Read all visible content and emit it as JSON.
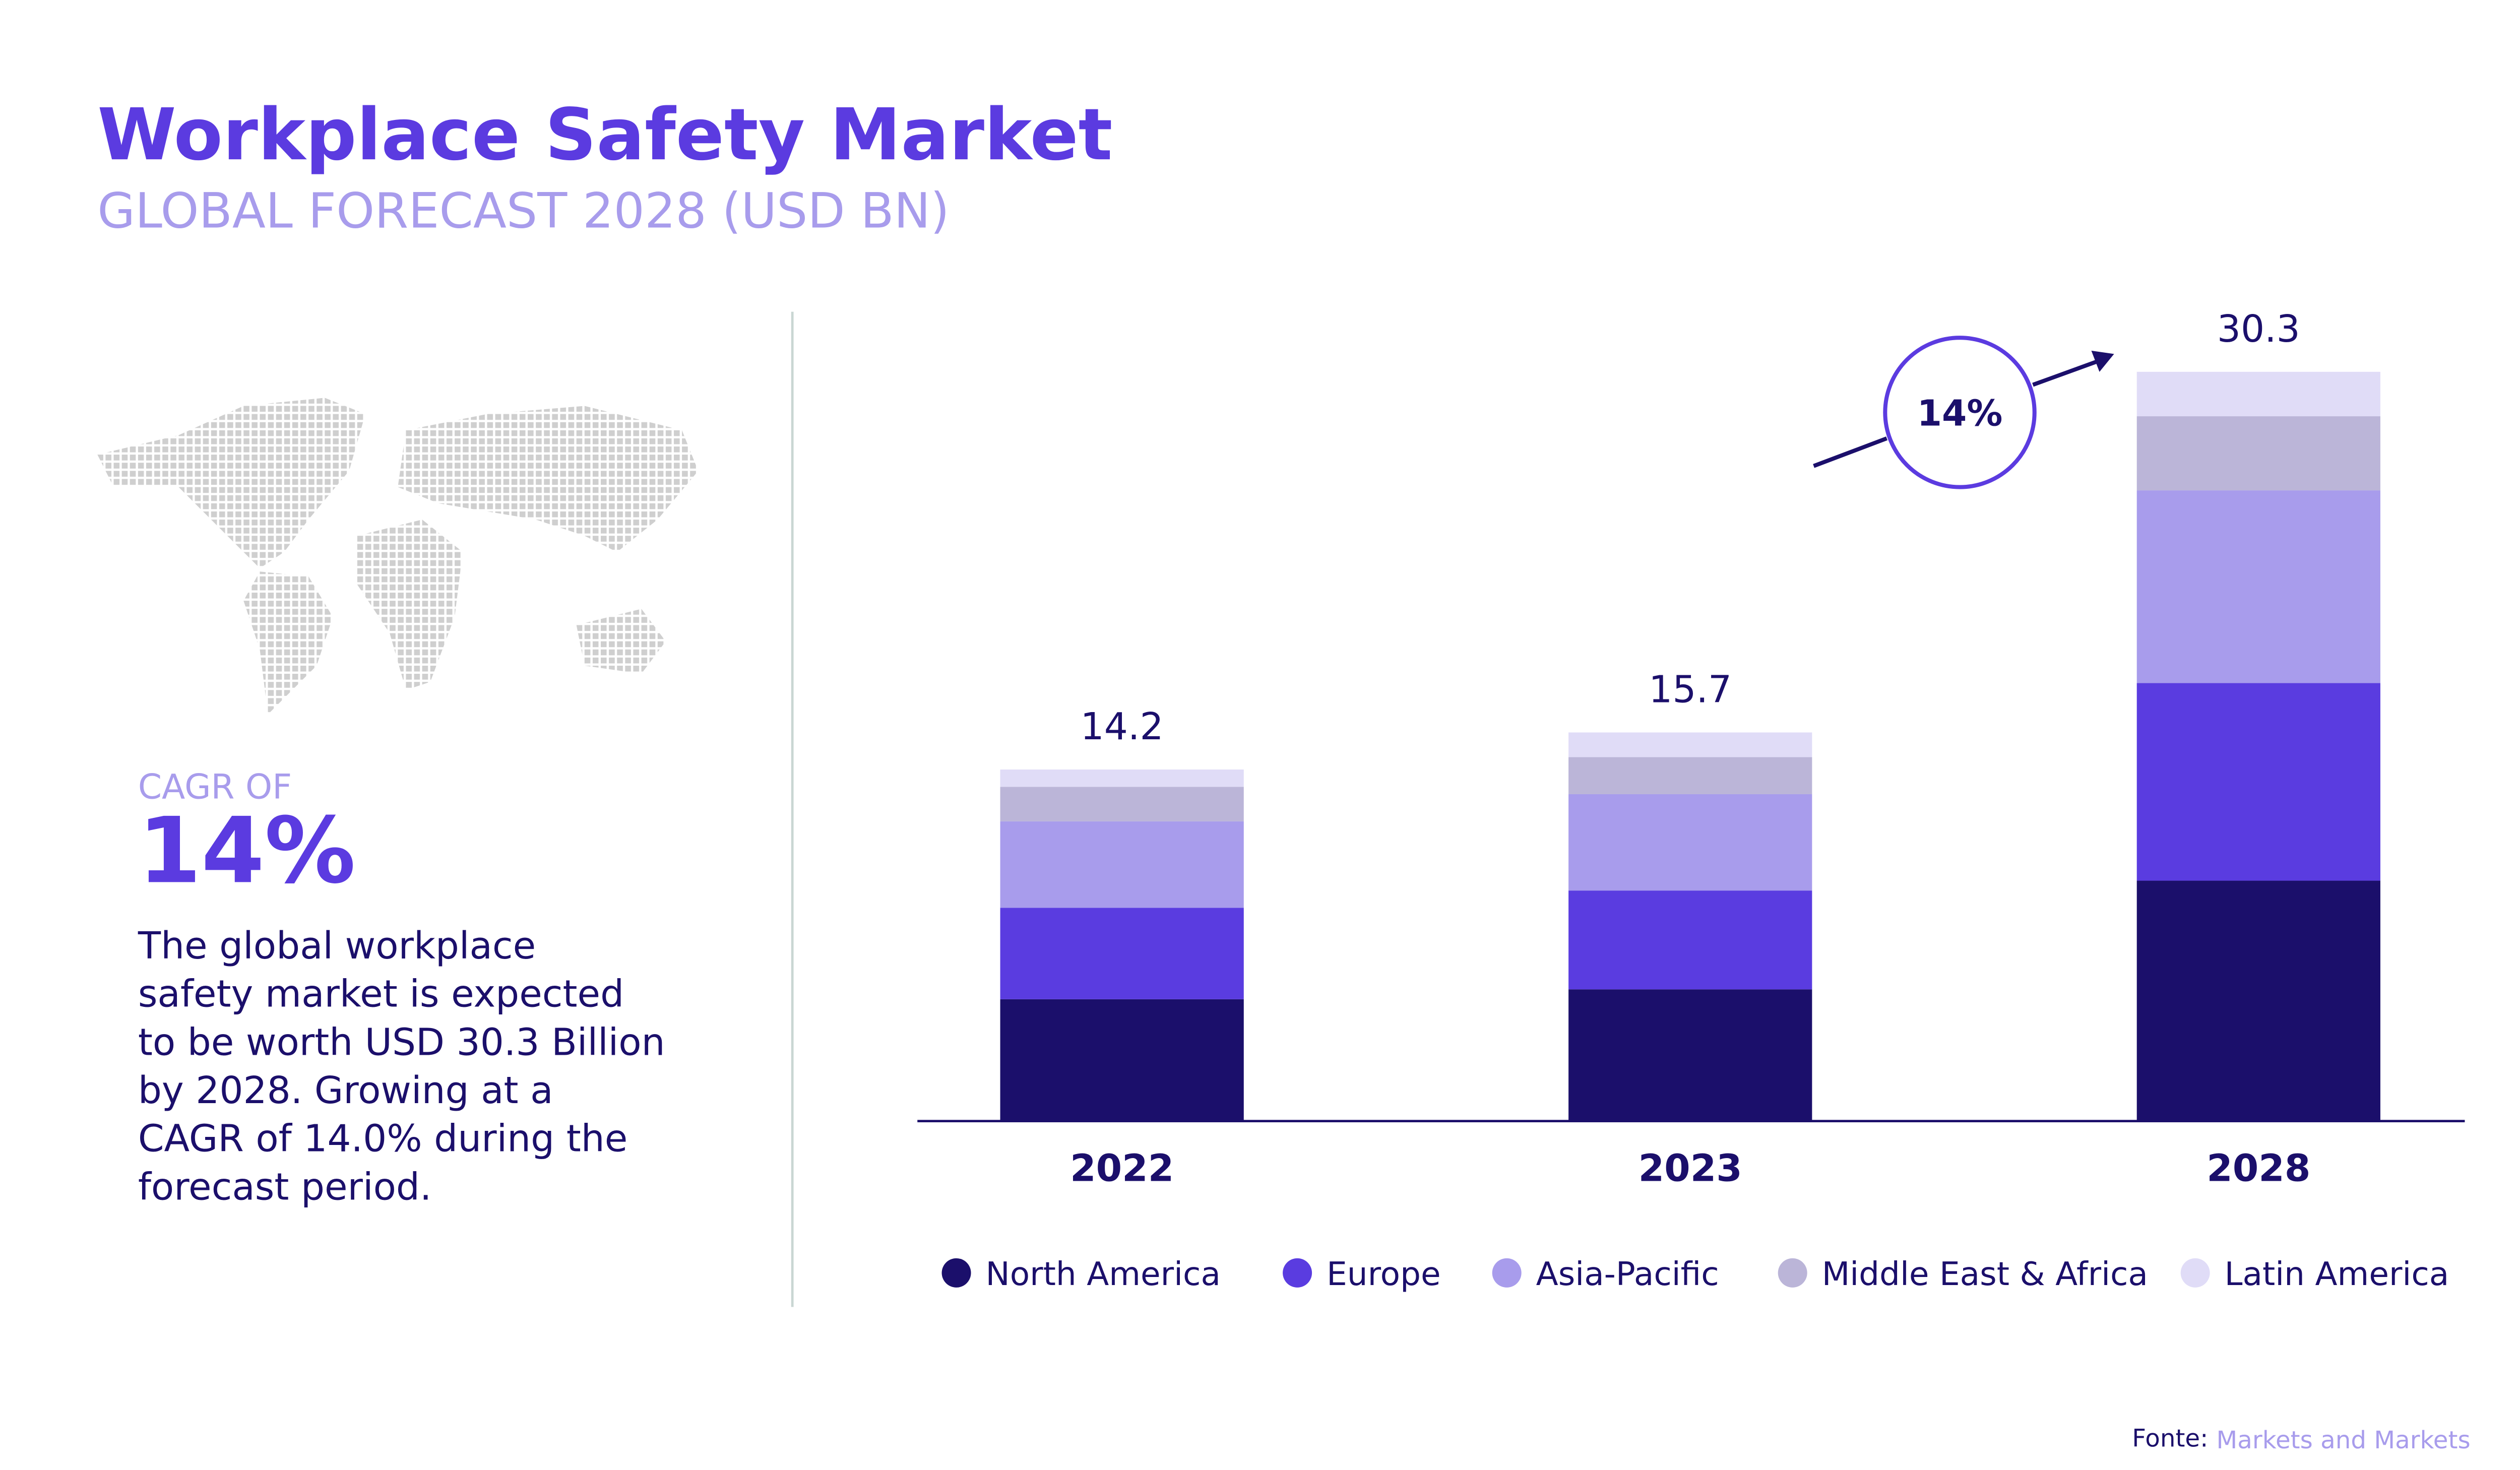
{
  "header": {
    "title": "Workplace Safety Market",
    "subtitle": "GLOBAL FORECAST 2028 (USD BN)"
  },
  "summary": {
    "label": "CAGR OF",
    "value": "14%",
    "description_lines": [
      "The global workplace",
      "safety market is expected",
      "to be worth USD 30.3 Billion",
      "by 2028. Growing at a",
      "CAGR of 14.0% during the",
      "forecast period."
    ]
  },
  "chart_data": {
    "type": "stacked_bar",
    "categories": [
      "2022",
      "2023",
      "2028"
    ],
    "series": [
      {
        "name": "North America",
        "color": "#1b0f6b",
        "values": [
          4.9,
          5.3,
          9.7
        ]
      },
      {
        "name": "Europe",
        "color": "#5a3ce0",
        "values": [
          3.7,
          4.0,
          8.0
        ]
      },
      {
        "name": "Asia-Pacific",
        "color": "#a89cec",
        "values": [
          3.5,
          3.9,
          7.8
        ]
      },
      {
        "name": "Middle East & Africa",
        "color": "#bbb5d8",
        "values": [
          1.4,
          1.5,
          3.0
        ]
      },
      {
        "name": "Latin America",
        "color": "#e0dcf7",
        "values": [
          0.7,
          1.0,
          1.8
        ]
      }
    ],
    "totals": [
      14.2,
      15.7,
      30.3
    ],
    "annotation": "14%"
  },
  "source": {
    "label": "Fonte:",
    "name": "Markets and Markets"
  }
}
